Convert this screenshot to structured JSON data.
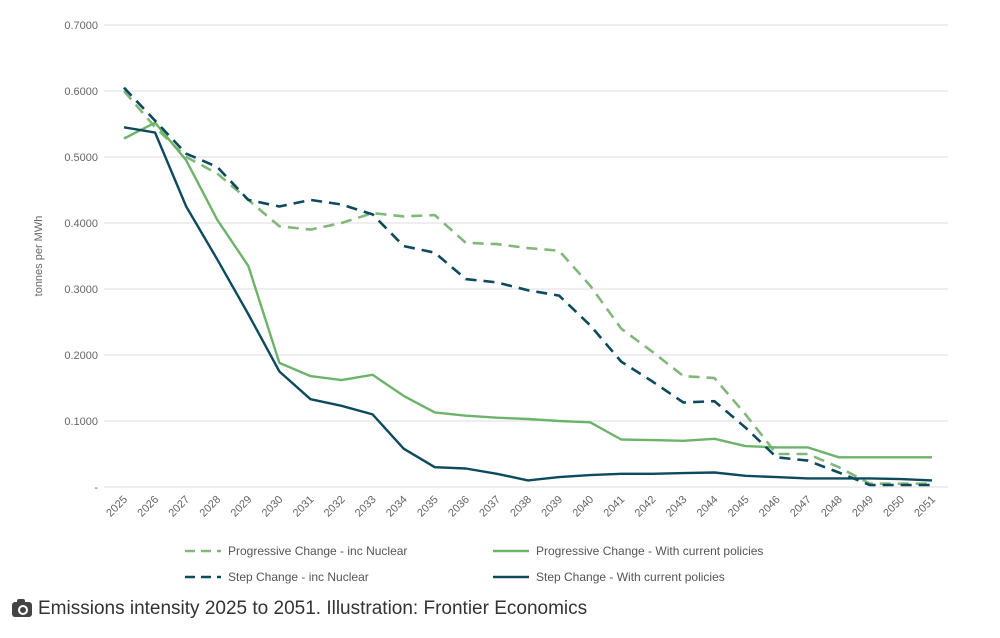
{
  "chart_data": {
    "type": "line",
    "ylabel": "tonnes per MWh",
    "xlabel": "",
    "ylim": [
      0,
      0.7
    ],
    "yticks": [
      "-",
      "0.1000",
      "0.2000",
      "0.3000",
      "0.4000",
      "0.5000",
      "0.6000",
      "0.7000"
    ],
    "grid": true,
    "legend_position": "bottom",
    "x": [
      "2025",
      "2026",
      "2027",
      "2028",
      "2029",
      "2030",
      "2031",
      "2032",
      "2033",
      "2034",
      "2035",
      "2036",
      "2037",
      "2038",
      "2039",
      "2040",
      "2041",
      "2042",
      "2043",
      "2044",
      "2045",
      "2046",
      "2047",
      "2048",
      "2049",
      "2050",
      "2051"
    ],
    "series": [
      {
        "name": "Progressive Change - inc Nuclear",
        "color": "#82b77a",
        "dashed": true,
        "values": [
          0.6,
          0.545,
          0.5,
          0.475,
          0.435,
          0.395,
          0.39,
          0.4,
          0.415,
          0.41,
          0.412,
          0.37,
          0.368,
          0.362,
          0.358,
          0.305,
          0.24,
          0.205,
          0.168,
          0.165,
          0.11,
          0.05,
          0.05,
          0.03,
          0.005,
          0.005,
          0.005
        ]
      },
      {
        "name": "Progressive Change - With current policies",
        "color": "#6db36a",
        "dashed": false,
        "values": [
          0.528,
          0.552,
          0.495,
          0.405,
          0.335,
          0.188,
          0.168,
          0.162,
          0.17,
          0.138,
          0.113,
          0.108,
          0.105,
          0.103,
          0.1,
          0.098,
          0.072,
          0.071,
          0.07,
          0.073,
          0.062,
          0.06,
          0.06,
          0.045,
          0.045,
          0.045,
          0.045
        ]
      },
      {
        "name": "Step Change - inc Nuclear",
        "color": "#0e4a5e",
        "dashed": true,
        "values": [
          0.605,
          0.555,
          0.505,
          0.485,
          0.435,
          0.425,
          0.435,
          0.428,
          0.413,
          0.365,
          0.355,
          0.315,
          0.31,
          0.298,
          0.29,
          0.245,
          0.19,
          0.16,
          0.128,
          0.13,
          0.09,
          0.045,
          0.04,
          0.022,
          0.003,
          0.003,
          0.003
        ]
      },
      {
        "name": "Step Change - With current policies",
        "color": "#0e4a5e",
        "dashed": false,
        "values": [
          0.545,
          0.537,
          0.425,
          0.345,
          0.262,
          0.175,
          0.133,
          0.123,
          0.11,
          0.058,
          0.03,
          0.028,
          0.02,
          0.01,
          0.015,
          0.018,
          0.02,
          0.02,
          0.021,
          0.022,
          0.017,
          0.015,
          0.013,
          0.013,
          0.013,
          0.012,
          0.01
        ]
      }
    ]
  },
  "caption": {
    "icon": "camera-icon",
    "text": "Emissions intensity 2025 to 2051. Illustration: Frontier Economics"
  }
}
